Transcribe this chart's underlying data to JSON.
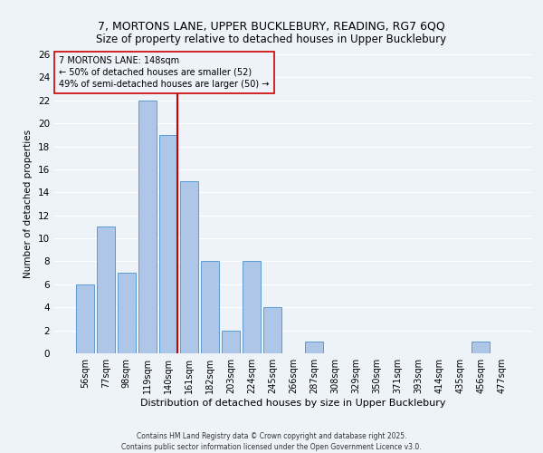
{
  "title_line1": "7, MORTONS LANE, UPPER BUCKLEBURY, READING, RG7 6QQ",
  "title_line2": "Size of property relative to detached houses in Upper Bucklebury",
  "xlabel": "Distribution of detached houses by size in Upper Bucklebury",
  "ylabel": "Number of detached properties",
  "bin_labels": [
    "56sqm",
    "77sqm",
    "98sqm",
    "119sqm",
    "140sqm",
    "161sqm",
    "182sqm",
    "203sqm",
    "224sqm",
    "245sqm",
    "266sqm",
    "287sqm",
    "308sqm",
    "329sqm",
    "350sqm",
    "371sqm",
    "393sqm",
    "414sqm",
    "435sqm",
    "456sqm",
    "477sqm"
  ],
  "bar_values": [
    6,
    11,
    7,
    22,
    19,
    15,
    8,
    2,
    8,
    4,
    0,
    1,
    0,
    0,
    0,
    0,
    0,
    0,
    0,
    1,
    0
  ],
  "bar_color": "#aec6e8",
  "bar_edge_color": "#5b9bd5",
  "ref_line_x": 4,
  "ref_line_label": "7 MORTONS LANE: 148sqm",
  "annotation_line1": "← 50% of detached houses are smaller (52)",
  "annotation_line2": "49% of semi-detached houses are larger (50) →",
  "ref_line_color": "#cc0000",
  "annotation_box_color": "#cc0000",
  "ylim": [
    0,
    26
  ],
  "yticks": [
    0,
    2,
    4,
    6,
    8,
    10,
    12,
    14,
    16,
    18,
    20,
    22,
    24,
    26
  ],
  "footnote_line1": "Contains HM Land Registry data © Crown copyright and database right 2025.",
  "footnote_line2": "Contains public sector information licensed under the Open Government Licence v3.0.",
  "background_color": "#eef2f9",
  "grid_color": "#ffffff",
  "title_fontsize": 9,
  "bar_label_fontsize": 7,
  "ytick_fontsize": 7.5,
  "ylabel_fontsize": 7.5,
  "xlabel_fontsize": 8,
  "annotation_fontsize": 7,
  "footnote_fontsize": 5.5
}
